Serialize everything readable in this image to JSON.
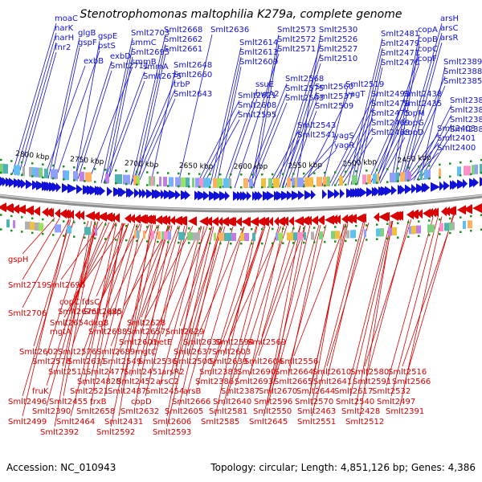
{
  "title": "Stenotrophomonas maltophilia K279a, complete genome",
  "footer": {
    "accession": "Accession: NC_010943",
    "summary": "Topology: circular; Length: 4,851,126 bp; Genes: 4,386"
  },
  "colors": {
    "forward": "#1010d8",
    "reverse": "#d80000",
    "backbone": "#8c8c8c",
    "tick_dot": "#1a8f1a"
  },
  "scale_labels": [
    "2800 kbp",
    "2750 kbp",
    "2700 kbp",
    "2650 kbp",
    "2600 kbp",
    "2550 kbp",
    "2500 kbp",
    "2450 kbp"
  ],
  "top_labels": [
    "moaC",
    "narK",
    "narH",
    "fnr2",
    "glgB",
    "gspF",
    "gspE",
    "pstS",
    "exbB",
    "exbD",
    "Smlt2711",
    "Smlt2703",
    "smmC",
    "Smlt2695",
    "smmB",
    "smmA",
    "Smlt2675",
    "Smlt2668",
    "Smlt2662",
    "Smlt2661",
    "Smlt2648",
    "Smlt2660",
    "trbP",
    "Smlt2643",
    "Smlt2636",
    "Smlt2614",
    "Smlt2613",
    "Smlt2609",
    "Smlt2621",
    "Smlt2608",
    "Smlt2595",
    "ssuE",
    "uvrA2",
    "Smlt2573",
    "Smlt2572",
    "Smlt2571",
    "Smlt2568",
    "Smlt2575",
    "Smlt2563",
    "Smlt2543",
    "Smlt2541",
    "Smlt2530",
    "Smlt2526",
    "Smlt2527",
    "Smlt2510",
    "Smlt2560",
    "Smlt2537",
    "Smlt2509",
    "Smlt2519",
    "yagT",
    "yagS",
    "yagR",
    "Smlt2481",
    "Smlt2479",
    "Smlt2471",
    "Smlt2470",
    "Smlt2491",
    "Smlt2478",
    "Smlt2475",
    "Smlt2469",
    "Smlt2468",
    "copA",
    "copB",
    "copC",
    "copF",
    "Smlt2438",
    "Smlt2435",
    "copM",
    "copG",
    "copD",
    "arsH",
    "arsC",
    "arsR",
    "Smlt2403",
    "Smlt2401",
    "Smlt2400",
    "Smlt2389",
    "Smlt2388",
    "Smlt2385",
    "Smlt2384",
    "Smlt2382",
    "Smlt2381",
    "Smlt2380"
  ],
  "bottom_labels": [
    "gspH",
    "Smlt2719",
    "Smlt2696",
    "Smlt2706",
    "copC",
    "fdsC",
    "Smlt2676",
    "Smlt2685",
    "pip",
    "Smlt2654",
    "dkgB",
    "Smlt2628",
    "mgtA",
    "Smlt2688",
    "Smlt2657",
    "Smlt2629",
    "Smlt2601",
    "metE",
    "Smlt2630",
    "Smlt2594",
    "Smlt2569",
    "Smlt2602",
    "Smlt2576",
    "Smlt2689",
    "mgtC",
    "Smlt2637",
    "Smlt2603",
    "Smlt2578",
    "Smlt2631",
    "Smlt2549",
    "Smlt2536",
    "Smlt2500",
    "Smlt2639",
    "Smlt2604",
    "Smlt2556",
    "Smlt2511",
    "Smlt2477",
    "Smlt2451",
    "arsR2",
    "Smlt2383",
    "Smlt2690",
    "Smlt2664",
    "Smlt2610",
    "Smlt2580",
    "Smlt2516",
    "Smlt2482B",
    "Smlt2452",
    "arsC2",
    "Smlt2386",
    "Smlt2693",
    "Smlt2665",
    "Smlt2641",
    "Smlt2591",
    "Smlt2566",
    "fruK",
    "Smlt2521",
    "Smlt2487",
    "Smlt2454",
    "arsB",
    "Smlt2387",
    "Smlt2670",
    "Smlt2644",
    "Smlt2617",
    "Smlt2532",
    "Smlt2496",
    "Smlt2455",
    "trxB",
    "copD",
    "Smlt2666",
    "Smlt2640",
    "Smlt2596",
    "Smlt2570",
    "Smlt2540",
    "Smlt2497",
    "Smlt2390",
    "Smlt2658",
    "Smlt2632",
    "Smlt2605",
    "Smlt2581",
    "Smlt2550",
    "Smlt2463",
    "Smlt2428",
    "Smlt2391",
    "Smlt2499",
    "Smlt2464",
    "Smlt2431",
    "Smlt2606",
    "Smlt2585",
    "Smlt2645",
    "Smlt2551",
    "Smlt2512",
    "Smlt2392",
    "Smlt2592",
    "Smlt2593"
  ]
}
